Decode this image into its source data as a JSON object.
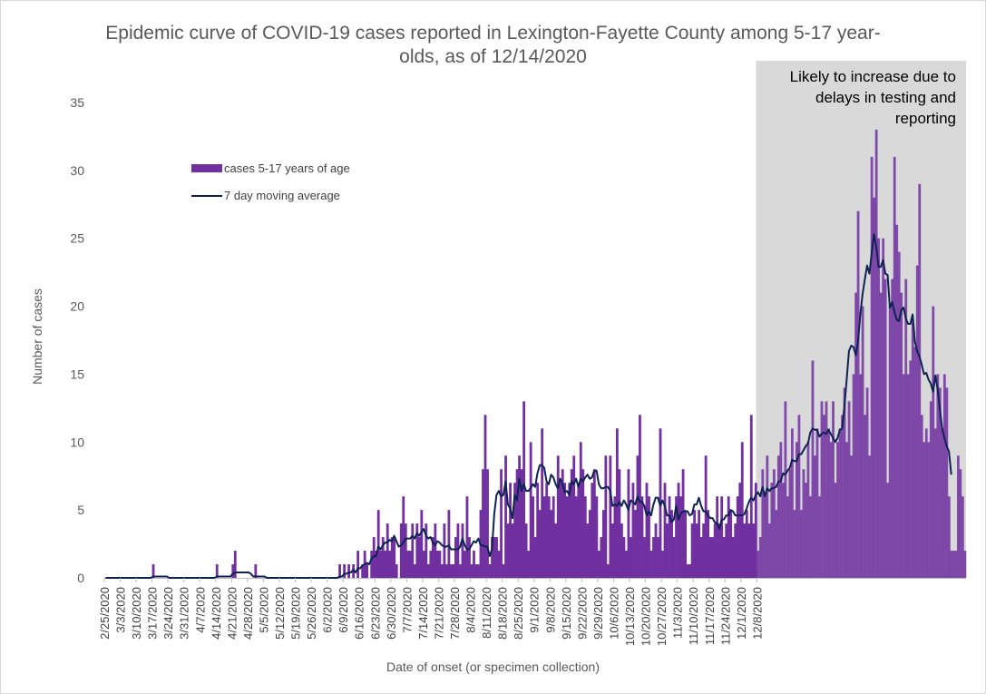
{
  "colors": {
    "bar": "#7030a0",
    "line": "#0e2254",
    "shade": "#d9d9d9",
    "axis": "#bfbfbf",
    "text": "#595959"
  },
  "chart_data": {
    "type": "bar",
    "title_lines": [
      "Epidemic curve of COVID-19 cases reported in Lexington-Fayette County among 5-17 year-",
      "olds, as of 12/14/2020"
    ],
    "xlabel": "Date of onset (or specimen collection)",
    "ylabel": "Number of cases",
    "ylim": [
      0,
      35
    ],
    "yticks": [
      "0",
      "5",
      "10",
      "15",
      "20",
      "25",
      "30",
      "35"
    ],
    "x_start": "2/25/2020",
    "x_end": "12/14/2020",
    "xtick_labels": [
      "2/25/2020",
      "3/3/2020",
      "3/10/2020",
      "3/17/2020",
      "3/24/2020",
      "3/31/2020",
      "4/7/2020",
      "4/14/2020",
      "4/21/2020",
      "4/28/2020",
      "5/5/2020",
      "5/12/2020",
      "5/19/2020",
      "5/26/2020",
      "6/2/2020",
      "6/9/2020",
      "6/16/2020",
      "6/23/2020",
      "6/30/2020",
      "7/7/2020",
      "7/14/2020",
      "7/21/2020",
      "7/28/2020",
      "8/4/2020",
      "8/11/2020",
      "8/18/2020",
      "8/25/2020",
      "9/1/2020",
      "9/8/2020",
      "9/15/2020",
      "9/22/2020",
      "9/29/2020",
      "10/6/2020",
      "10/13/2020",
      "10/20/2020",
      "10/27/2020",
      "11/3/2020",
      "11/10/2020",
      "11/17/2020",
      "11/24/2020",
      "12/1/2020",
      "12/8/2020"
    ],
    "legend": {
      "position": "top-left",
      "bar_label": "cases 5-17 years of age",
      "line_label": "7 day moving average"
    },
    "annotation_lines": [
      "Likely to increase due to",
      "delays in testing and",
      "reporting"
    ],
    "shaded_region": {
      "from": "12/8/2020",
      "to": "12/14/2020"
    },
    "series": [
      {
        "name": "cases 5-17 years of age",
        "type": "bar",
        "values": [
          0,
          0,
          0,
          0,
          0,
          0,
          0,
          0,
          0,
          0,
          0,
          0,
          0,
          0,
          0,
          0,
          0,
          0,
          0,
          0,
          0,
          1,
          0,
          0,
          0,
          0,
          0,
          0,
          0,
          0,
          0,
          0,
          0,
          0,
          0,
          0,
          0,
          0,
          0,
          0,
          0,
          0,
          0,
          0,
          0,
          0,
          0,
          0,
          0,
          1,
          0,
          0,
          0,
          0,
          0,
          0,
          1,
          2,
          0,
          0,
          0,
          0,
          0,
          0,
          0,
          0,
          1,
          0,
          0,
          0,
          0,
          0,
          0,
          0,
          0,
          0,
          0,
          0,
          0,
          0,
          0,
          0,
          0,
          0,
          0,
          0,
          0,
          0,
          0,
          0,
          0,
          0,
          0,
          0,
          0,
          0,
          0,
          0,
          0,
          0,
          0,
          0,
          0,
          1,
          0,
          1,
          0,
          1,
          0,
          1,
          0,
          2,
          0,
          1,
          2,
          1,
          0,
          2,
          3,
          2,
          5,
          2,
          3,
          2,
          4,
          2,
          3,
          3,
          1,
          0,
          4,
          6,
          4,
          2,
          2,
          4,
          1,
          4,
          3,
          5,
          2,
          4,
          1,
          2,
          3,
          4,
          2,
          2,
          1,
          4,
          1,
          5,
          1,
          1,
          3,
          4,
          1,
          4,
          2,
          6,
          3,
          1,
          2,
          1,
          1,
          5,
          8,
          12,
          8,
          1,
          3,
          3,
          3,
          2,
          8,
          1,
          9,
          4,
          7,
          4,
          7,
          8,
          9,
          8,
          13,
          4,
          2,
          10,
          6,
          3,
          7,
          5,
          11,
          6,
          7,
          6,
          5,
          6,
          4,
          9,
          7,
          8,
          7,
          6,
          7,
          8,
          9,
          6,
          7,
          10,
          8,
          6,
          4,
          5,
          7,
          8,
          6,
          2,
          3,
          5,
          9,
          1,
          9,
          4,
          6,
          11,
          8,
          4,
          3,
          2,
          8,
          3,
          7,
          5,
          9,
          12,
          6,
          3,
          7,
          6,
          2,
          3,
          4,
          3,
          11,
          2,
          7,
          4,
          6,
          5,
          3,
          6,
          7,
          6,
          8,
          5,
          1,
          1,
          4,
          5,
          4,
          5,
          3,
          4,
          9,
          5,
          3,
          3,
          4,
          6,
          4,
          6,
          3,
          4,
          6,
          5,
          3,
          4,
          6,
          7,
          10,
          4,
          5,
          4,
          12,
          4,
          7,
          2,
          3,
          8,
          6,
          9,
          4,
          7,
          8,
          5,
          9,
          10,
          7,
          13,
          6,
          8,
          11,
          5,
          10,
          12,
          5,
          8,
          7,
          10,
          6,
          16,
          9,
          11,
          6,
          13,
          12,
          13,
          11,
          10,
          13,
          7,
          10,
          11,
          12,
          14,
          10,
          13,
          9,
          15,
          21,
          27,
          15,
          20,
          12,
          14,
          9,
          31,
          28,
          33,
          25,
          21,
          25,
          22,
          7,
          20,
          22,
          31,
          26,
          24,
          21,
          15,
          22,
          15,
          16,
          19,
          17,
          23,
          29,
          12,
          10,
          11,
          10,
          13,
          20,
          11,
          15,
          14,
          11,
          15,
          14,
          6,
          2,
          2,
          2,
          9,
          8,
          6,
          2
        ]
      },
      {
        "name": "7 day moving average",
        "type": "line",
        "values": [
          0,
          0,
          0,
          0,
          0,
          0,
          0,
          0,
          0,
          0,
          0,
          0,
          0,
          0,
          0,
          0,
          0,
          0,
          0,
          0,
          0,
          0.1,
          0.1,
          0.1,
          0.1,
          0.1,
          0.1,
          0.1,
          0,
          0,
          0,
          0,
          0,
          0,
          0,
          0,
          0,
          0,
          0,
          0,
          0,
          0,
          0,
          0,
          0,
          0,
          0,
          0,
          0,
          0.1,
          0.1,
          0.1,
          0.1,
          0.1,
          0.1,
          0.1,
          0.3,
          0.4,
          0.4,
          0.4,
          0.4,
          0.4,
          0.4,
          0.4,
          0.3,
          0.1,
          0.1,
          0.1,
          0.1,
          0.1,
          0.1,
          0,
          0,
          0,
          0,
          0,
          0,
          0,
          0,
          0,
          0,
          0,
          0,
          0,
          0,
          0,
          0,
          0,
          0,
          0,
          0,
          0,
          0,
          0,
          0,
          0,
          0,
          0,
          0,
          0,
          0,
          0,
          0,
          0.1,
          0.1,
          0.3,
          0.3,
          0.4,
          0.4,
          0.6,
          0.4,
          0.7,
          0.7,
          0.9,
          1,
          1.1,
          1,
          1.4,
          1.6,
          1.6,
          2.3,
          2.1,
          2.4,
          2.6,
          2.6,
          2.8,
          2.7,
          3.1,
          2.7,
          2.3,
          2.4,
          2.6,
          2.9,
          2.9,
          2.9,
          3.1,
          2.9,
          3.3,
          3.1,
          3.4,
          3.6,
          3.1,
          2.9,
          3,
          2.6,
          2.4,
          2.7,
          2.6,
          2.4,
          2.3,
          2.3,
          2.4,
          2.1,
          2.1,
          2.1,
          2.1,
          2.3,
          2.9,
          2.4,
          2.1,
          2.1,
          2.4,
          2.7,
          2.6,
          2.9,
          2.4,
          2.4,
          2.3,
          2.3,
          1.6,
          2.1,
          4.7,
          6.1,
          6.4,
          6,
          6.1,
          7.1,
          5.4,
          5.1,
          4.4,
          6.1,
          5.7,
          7.3,
          6.4,
          6.9,
          6.4,
          6.4,
          6.6,
          6.9,
          6.7,
          7.7,
          8.3,
          8.3,
          8.1,
          7.1,
          6.9,
          7.6,
          7.4,
          6.9,
          6.6,
          7.3,
          6.9,
          6.3,
          6.4,
          6.1,
          7.1,
          6.9,
          7.3,
          6.7,
          7.3,
          7.1,
          7.4,
          7.6,
          7.3,
          7.4,
          7.9,
          7.9,
          6.9,
          6.6,
          6.6,
          6.7,
          6.7,
          6.4,
          5.3,
          5.4,
          5.3,
          5.6,
          5.3,
          5.7,
          5.4,
          5,
          5.7,
          5.6,
          5.4,
          6,
          5.6,
          5.6,
          5.3,
          4.6,
          4.9,
          4.6,
          5.4,
          5.9,
          5.9,
          5.3,
          5.7,
          5.3,
          4.6,
          4.6,
          4.1,
          4.3,
          5.3,
          4.3,
          4.7,
          4.9,
          4.9,
          4.9,
          4.6,
          4.7,
          5.4,
          5.4,
          5.9,
          5.3,
          4.9,
          4.9,
          4.6,
          4.4,
          4.4,
          4.1,
          4,
          3.6,
          4.3,
          4.3,
          4.6,
          4.6,
          5,
          4.9,
          4.6,
          4.6,
          4.6,
          4.6,
          4.7,
          5.1,
          5.6,
          5.9,
          5.7,
          6.1,
          6.3,
          6,
          6.7,
          6,
          6.6,
          6.4,
          6.6,
          6.6,
          6.7,
          7.1,
          7.1,
          7.7,
          7.6,
          7.9,
          8.1,
          8.7,
          8.6,
          8.6,
          9.1,
          9.1,
          9.4,
          9.7,
          9.9,
          10.7,
          11,
          10.9,
          10.9,
          10.4,
          10.6,
          10.7,
          10.6,
          10.9,
          10.6,
          10.3,
          10,
          10.3,
          10.9,
          11,
          12.6,
          14.6,
          16.7,
          17.1,
          17,
          16.4,
          17.4,
          19.4,
          20.9,
          22,
          23,
          22.4,
          23.9,
          25.3,
          24.4,
          22.9,
          22.9,
          23.4,
          22.4,
          22.3,
          19.9,
          20.3,
          19.6,
          19,
          18.9,
          19.7,
          19.9,
          19.1,
          18.7,
          18.7,
          19.4,
          17.4,
          16.7,
          16.3,
          15.7,
          15,
          15.1,
          14.6,
          14.3,
          13.7,
          14.9,
          13.9,
          12.4,
          11,
          10.3,
          9.7,
          9.3,
          7.6
        ]
      }
    ]
  }
}
